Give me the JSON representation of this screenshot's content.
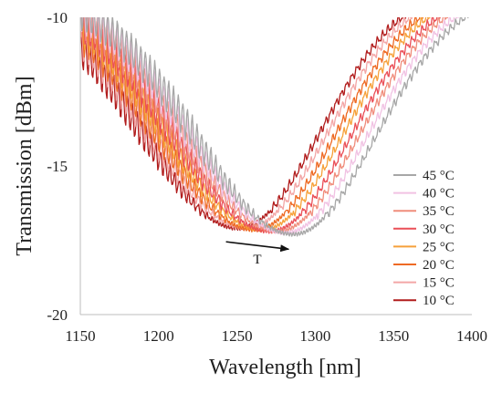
{
  "chart_data": {
    "type": "line",
    "title": "",
    "xlabel": "Wavelength [nm]",
    "ylabel": "Transmission [dBm]",
    "xlim": [
      1150,
      1400
    ],
    "ylim": [
      -20,
      -10
    ],
    "x_ticks": [
      1150,
      1200,
      1250,
      1300,
      1350,
      1400
    ],
    "y_ticks": [
      -20,
      -15,
      -10
    ],
    "grid": false,
    "legend_position": "right",
    "annotation": {
      "text": "T",
      "arrow_from": {
        "x": 1243,
        "y": -17.55
      },
      "arrow_to": {
        "x": 1283,
        "y": -17.8
      }
    },
    "series": [
      {
        "name": "45 °C",
        "color": "#a7a7a7",
        "dip_x": 1286,
        "min_y": -17.3
      },
      {
        "name": "40 °C",
        "color": "#f1c2e3",
        "dip_x": 1281,
        "min_y": -17.25
      },
      {
        "name": "35 °C",
        "color": "#f08d7c",
        "dip_x": 1276,
        "min_y": -17.2
      },
      {
        "name": "30 °C",
        "color": "#ea4f57",
        "dip_x": 1271,
        "min_y": -17.2
      },
      {
        "name": "25 °C",
        "color": "#f6a13a",
        "dip_x": 1266,
        "min_y": -17.15
      },
      {
        "name": "20 °C",
        "color": "#ee6a24",
        "dip_x": 1261,
        "min_y": -17.15
      },
      {
        "name": "15 °C",
        "color": "#f3a6a6",
        "dip_x": 1256,
        "min_y": -17.1
      },
      {
        "name": "10 °C",
        "color": "#b11c1c",
        "dip_x": 1251,
        "min_y": -17.1
      }
    ]
  }
}
